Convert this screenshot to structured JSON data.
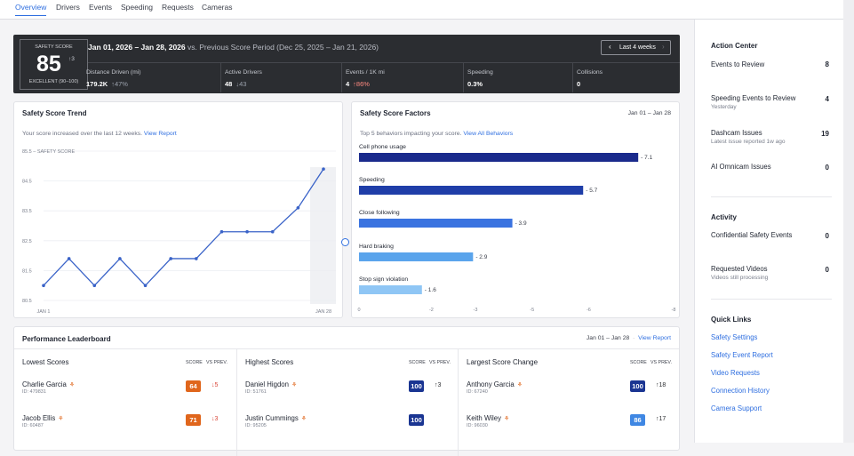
{
  "tabs": [
    "Overview",
    "Drivers",
    "Events",
    "Speeding",
    "Requests",
    "Cameras"
  ],
  "banner": {
    "score_label": "SAFETY SCORE",
    "score": "85",
    "score_change": "↑3",
    "score_grade": "EXCELLENT (90–100)",
    "period": "Jan 01, 2026 – Jan 28, 2026",
    "comparison": "vs. Previous Score Period (Dec 25, 2025 – Jan 21, 2026)",
    "range_button": "Last 4 weeks",
    "stats": [
      {
        "label": "Distance Driven (mi)",
        "value": "179.2K",
        "delta": "↑47%"
      },
      {
        "label": "Active Drivers",
        "value": "48",
        "delta": "↓43"
      },
      {
        "label": "Events / 1K mi",
        "value": "4",
        "delta": "↑86%"
      },
      {
        "label": "Speeding",
        "value": "0.3%",
        "delta": ""
      },
      {
        "label": "Collisions",
        "value": "0",
        "delta": ""
      }
    ]
  },
  "trend": {
    "title": "Safety Score Trend",
    "subtitle": "Your score increased over the last 12 weeks.",
    "link": "View Report",
    "axis_title": "85.5 – SAFETY SCORE",
    "x_start": "JAN 1",
    "x_end": "JAN 28"
  },
  "factors": {
    "title": "Safety Score Factors",
    "date": "Jan 01 – Jan 28",
    "subtitle": "Top 5 behaviors impacting your score.",
    "link": "View All Behaviors",
    "ticks": [
      "0",
      "-2",
      "-3",
      "-5",
      "-6",
      "-8"
    ]
  },
  "chart_data": [
    {
      "type": "line",
      "title": "Safety Score Trend",
      "x": [
        "JAN 1",
        "",
        "",
        "",
        "",
        "",
        "",
        "",
        "",
        "",
        "",
        "JAN 28"
      ],
      "yticks": [
        "85.5",
        "84.5",
        "83.5",
        "82.5",
        "81.5",
        "80.5"
      ],
      "ylim": [
        80.5,
        85.5
      ],
      "values": [
        81.0,
        81.9,
        81.0,
        81.9,
        81.0,
        81.9,
        81.9,
        82.8,
        82.8,
        82.8,
        83.6,
        84.9
      ]
    },
    {
      "type": "bar",
      "title": "Safety Score Factors",
      "categories": [
        "Cell phone usage",
        "Speeding",
        "Close following",
        "Hard braking",
        "Stop sign violation"
      ],
      "values": [
        -7.1,
        -5.7,
        -3.9,
        -2.9,
        -1.6
      ],
      "labels": [
        "- 7.1",
        "- 5.7",
        "- 3.9",
        "- 2.9",
        "- 1.6"
      ],
      "xlim": [
        0,
        -8
      ],
      "colors": [
        "#1a2a8c",
        "#1f3ea8",
        "#3a73e0",
        "#5aa4ec",
        "#8fc6f5"
      ]
    }
  ],
  "leaderboard": {
    "title": "Performance Leaderboard",
    "date": "Jan 01 – Jan 28",
    "link": "View Report",
    "score_h": "SCORE",
    "prev_h": "VS PREV.",
    "columns": [
      {
        "title": "Lowest Scores",
        "rows": [
          {
            "name": "Charlie Garcia",
            "id": "ID: 479831",
            "score": "64",
            "delta": "↓5",
            "color": "#e0661c",
            "dcolor": "#d9473a"
          },
          {
            "name": "Jacob Ellis",
            "id": "ID: 60487",
            "score": "71",
            "delta": "↓3",
            "color": "#e0661c",
            "dcolor": "#d9473a"
          }
        ]
      },
      {
        "title": "Highest Scores",
        "rows": [
          {
            "name": "Daniel Higdon",
            "id": "ID: 51761",
            "score": "100",
            "delta": "↑3",
            "color": "#1a3592",
            "dcolor": "#2b2d31"
          },
          {
            "name": "Justin Cummings",
            "id": "ID: 95205",
            "score": "100",
            "delta": "",
            "color": "#1a3592",
            "dcolor": "#2b2d31"
          }
        ]
      },
      {
        "title": "Largest Score Change",
        "rows": [
          {
            "name": "Anthony Garcia",
            "id": "ID: 67240",
            "score": "100",
            "delta": "↑18",
            "color": "#1a3592",
            "dcolor": "#2b2d31"
          },
          {
            "name": "Keith Wiley",
            "id": "ID: 96030",
            "score": "86",
            "delta": "↑17",
            "color": "#3f87e3",
            "dcolor": "#2b2d31"
          }
        ]
      }
    ]
  },
  "action": {
    "title": "Action Center",
    "items": [
      {
        "label": "Events to Review",
        "sub": "",
        "count": "8"
      },
      {
        "label": "Speeding Events to Review",
        "sub": "Yesterday",
        "count": "4"
      },
      {
        "label": "Dashcam Issues",
        "sub": "Latest issue reported 1w ago",
        "count": "19"
      },
      {
        "label": "AI Omnicam Issues",
        "sub": "",
        "count": "0"
      }
    ]
  },
  "activity": {
    "title": "Activity",
    "items": [
      {
        "label": "Confidential Safety Events",
        "sub": "",
        "count": "0"
      },
      {
        "label": "Requested Videos",
        "sub": "Videos still processing",
        "count": "0"
      }
    ]
  },
  "quick_links": {
    "title": "Quick Links",
    "items": [
      "Safety Settings",
      "Safety Event Report",
      "Video Requests",
      "Connection History",
      "Camera Support"
    ]
  }
}
